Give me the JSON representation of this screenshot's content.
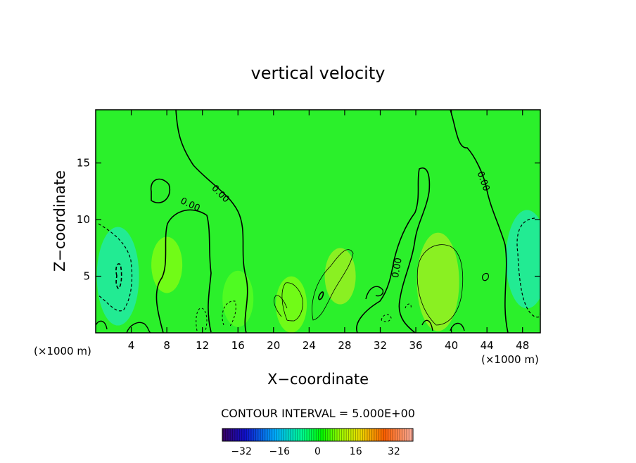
{
  "chart_data": {
    "type": "heatmap",
    "title": "vertical velocity",
    "xlabel": "X−coordinate",
    "ylabel": "Z−coordinate",
    "x_unit_left": "(×1000 m)",
    "x_unit_right": "(×1000 m)",
    "xlim": [
      0,
      50
    ],
    "ylim": [
      0,
      19.7
    ],
    "x_ticks": [
      4,
      8,
      12,
      16,
      20,
      24,
      28,
      32,
      36,
      40,
      44,
      48
    ],
    "y_ticks": [
      5,
      10,
      15
    ],
    "contour_interval_text": "CONTOUR INTERVAL = 5.000E+00",
    "contour_labels": [
      {
        "text": "0.00",
        "x": 10.5,
        "y": 11.1,
        "angle": 25
      },
      {
        "text": "0.00",
        "x": 13.8,
        "y": 12.1,
        "angle": 45
      },
      {
        "text": "0.00",
        "x": 34.2,
        "y": 5.7,
        "angle": -80
      },
      {
        "text": "0.00",
        "x": 43.3,
        "y": 13.3,
        "angle": 70
      }
    ],
    "colorbar": {
      "min": -40,
      "max": 40,
      "ticks": [
        "−32",
        "−16",
        "0",
        "16",
        "32"
      ],
      "tick_values": [
        -32,
        -16,
        0,
        16,
        32
      ]
    },
    "field_features": [
      {
        "x": 2.5,
        "y": 5.0,
        "value": -9,
        "note": "downdraft left edge"
      },
      {
        "x": 48.5,
        "y": 6.5,
        "value": -8,
        "note": "downdraft right edge"
      },
      {
        "x": 27.5,
        "y": 5.0,
        "value": 6
      },
      {
        "x": 38.5,
        "y": 4.5,
        "value": 7
      },
      {
        "x": 22.0,
        "y": 2.5,
        "value": 4
      },
      {
        "x": 8.0,
        "y": 6.0,
        "value": 2
      },
      {
        "x": 16.0,
        "y": 3.0,
        "value": -1
      }
    ]
  }
}
